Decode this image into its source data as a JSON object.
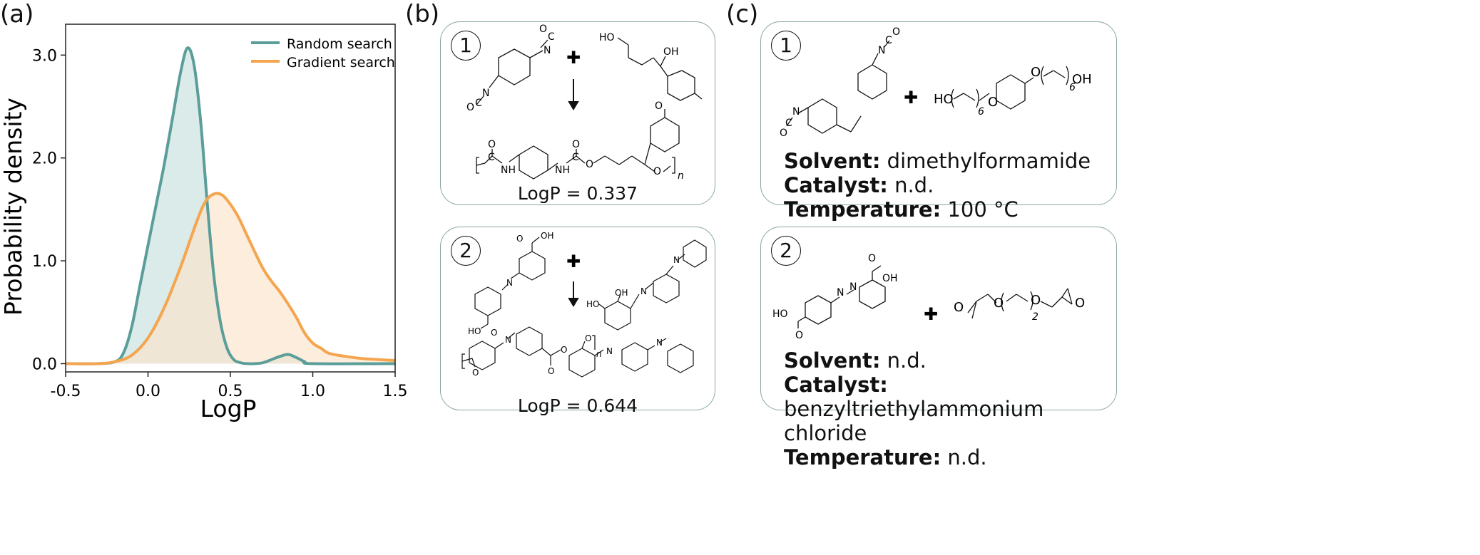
{
  "panels": {
    "a": {
      "letter": "(a)"
    },
    "b": {
      "letter": "(b)"
    },
    "c": {
      "letter": "(c)"
    }
  },
  "chart_data": {
    "type": "area",
    "xlabel": "LogP",
    "ylabel": "Probability density",
    "xlim": [
      -0.5,
      1.5
    ],
    "ylim": [
      -0.08,
      3.3
    ],
    "xticks": [
      "-0.5",
      "0.0",
      "0.5",
      "1.0",
      "1.5"
    ],
    "xtick_values": [
      -0.5,
      0.0,
      0.5,
      1.0,
      1.5
    ],
    "yticks": [
      "0.0",
      "1.0",
      "2.0",
      "3.0"
    ],
    "ytick_values": [
      0.0,
      1.0,
      2.0,
      3.0
    ],
    "grid": false,
    "legend_position": "top-right",
    "series": [
      {
        "name": "Random search",
        "color": "#5b9e99",
        "fill": "#d3e8e6",
        "x": [
          -0.5,
          -0.3,
          -0.2,
          -0.15,
          -0.1,
          -0.05,
          0.0,
          0.05,
          0.1,
          0.15,
          0.2,
          0.24,
          0.28,
          0.32,
          0.36,
          0.4,
          0.44,
          0.48,
          0.52,
          0.56,
          0.6,
          0.65,
          0.7,
          0.75,
          0.8,
          0.85,
          0.9,
          0.95,
          1.0,
          1.5
        ],
        "y": [
          0.0,
          0.0,
          0.02,
          0.1,
          0.35,
          0.75,
          1.15,
          1.55,
          1.95,
          2.4,
          2.85,
          3.07,
          2.9,
          2.35,
          1.55,
          0.85,
          0.4,
          0.15,
          0.04,
          0.01,
          0.0,
          0.0,
          0.01,
          0.04,
          0.07,
          0.09,
          0.06,
          0.02,
          0.0,
          0.0
        ]
      },
      {
        "name": "Gradient search",
        "color": "#f5a54e",
        "fill": "#fbe3cb",
        "x": [
          -0.5,
          -0.3,
          -0.2,
          -0.1,
          0.0,
          0.1,
          0.2,
          0.3,
          0.35,
          0.4,
          0.45,
          0.5,
          0.55,
          0.6,
          0.65,
          0.7,
          0.75,
          0.8,
          0.85,
          0.9,
          0.95,
          1.0,
          1.05,
          1.1,
          1.2,
          1.3,
          1.4,
          1.5
        ],
        "y": [
          0.0,
          0.0,
          0.02,
          0.08,
          0.25,
          0.55,
          0.95,
          1.4,
          1.58,
          1.65,
          1.64,
          1.55,
          1.42,
          1.25,
          1.08,
          0.92,
          0.8,
          0.7,
          0.58,
          0.45,
          0.3,
          0.2,
          0.15,
          0.1,
          0.07,
          0.05,
          0.04,
          0.03
        ]
      }
    ]
  },
  "panel_b": {
    "cards": [
      {
        "number": "1",
        "logp": "LogP = 0.337"
      },
      {
        "number": "2",
        "logp": "LogP = 0.644"
      }
    ],
    "atoms": {
      "O": "O",
      "C": "C",
      "N": "N",
      "NH": "NH",
      "HO": "HO",
      "OH": "OH",
      "n": "n"
    }
  },
  "panel_c": {
    "cards": [
      {
        "number": "1",
        "solvent_label": "Solvent:",
        "solvent": " dimethylformamide",
        "catalyst_label": "Catalyst:",
        "catalyst": " n.d.",
        "temperature_label": "Temperature:",
        "temperature": " 100 °C"
      },
      {
        "number": "2",
        "solvent_label": "Solvent:",
        "solvent": " n.d.",
        "catalyst_label": "Catalyst:",
        "catalyst": " benzyltriethylammonium chloride",
        "temperature_label": "Temperature:",
        "temperature": " n.d."
      }
    ],
    "subscripts": {
      "six": "6",
      "two": "2"
    }
  },
  "plus_sign": "✚"
}
